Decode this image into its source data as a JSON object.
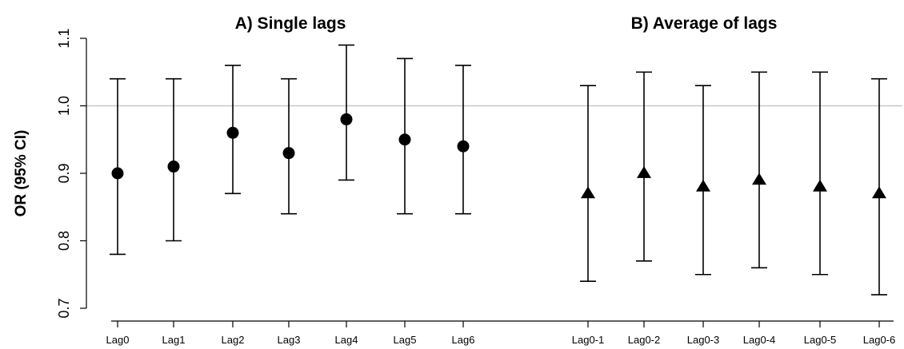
{
  "chart_data": {
    "type": "scatter",
    "ylabel": "OR (95% CI)",
    "ylim": [
      0.7,
      1.1
    ],
    "yticks": [
      "0.7",
      "0.8",
      "0.9",
      "1.0",
      "1.1"
    ],
    "reference_line": 1.0,
    "grid": false,
    "panels": [
      {
        "title": "A) Single lags",
        "marker": "circle",
        "categories": [
          "Lag0",
          "Lag1",
          "Lag2",
          "Lag3",
          "Lag4",
          "Lag5",
          "Lag6"
        ],
        "or": [
          0.9,
          0.91,
          0.96,
          0.93,
          0.98,
          0.95,
          0.94
        ],
        "lower": [
          0.78,
          0.8,
          0.87,
          0.84,
          0.89,
          0.84,
          0.84
        ],
        "upper": [
          1.04,
          1.04,
          1.06,
          1.04,
          1.09,
          1.07,
          1.06
        ]
      },
      {
        "title": "B) Average of lags",
        "marker": "triangle",
        "categories": [
          "Lag0-1",
          "Lag0-2",
          "Lag0-3",
          "Lag0-4",
          "Lag0-5",
          "Lag0-6"
        ],
        "or": [
          0.87,
          0.9,
          0.88,
          0.89,
          0.88,
          0.87
        ],
        "lower": [
          0.74,
          0.77,
          0.75,
          0.76,
          0.75,
          0.72
        ],
        "upper": [
          1.03,
          1.05,
          1.03,
          1.05,
          1.05,
          1.04
        ]
      }
    ]
  }
}
